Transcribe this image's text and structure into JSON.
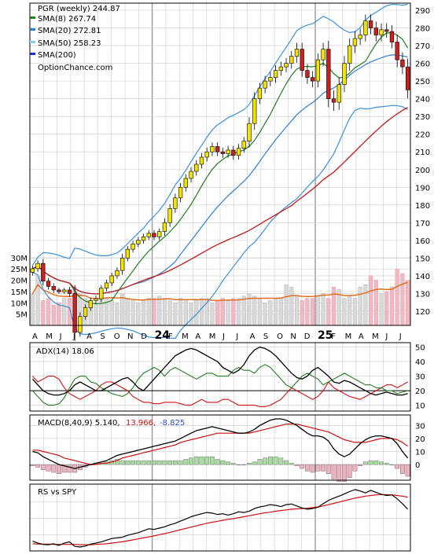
{
  "chart_data": {
    "type": "line",
    "symbol": "PGR",
    "period": "weekly",
    "colors": {
      "grid": "#cccccc",
      "frame": "#000000",
      "sma8": "#1d7f1d",
      "sma20": "#2f7fd0",
      "sma50": "#c01a1a",
      "sma200": "#1a2ad8",
      "bb": "#3a8fdc",
      "bb_squeeze": "#f0e000",
      "candle_up": "#f2e300",
      "candle_down": "#cc1f1f",
      "volume": "#d9d9d9",
      "volume_down": "#f0b9c4",
      "volume_ma": "#e07020",
      "adx": "#000000",
      "plus_di": "#1f7f1f",
      "minus_di": "#d01010",
      "macd": "#000000",
      "signal": "#cc1010",
      "hist_up": "#a8dca0",
      "hist_down": "#f0b0c0",
      "rs": "#000000",
      "rs_ma": "#d01010"
    },
    "legend": {
      "title": "PGR (weekly) 244.87",
      "items": [
        {
          "label": "SMA(8) 267.74",
          "color": "#1d7f1d"
        },
        {
          "label": "SMA(20) 272.81",
          "color": "#2f7fd0"
        },
        {
          "label": "SMA(50) 258.23",
          "color": "#8fc8f0"
        },
        {
          "label": "SMA(200)",
          "color": "#1a2ad8"
        }
      ],
      "source": "OptionChance.com"
    },
    "x_labels": [
      "A",
      "M",
      "J",
      "J",
      "A",
      "S",
      "O",
      "N",
      "D",
      "24",
      "F",
      "M",
      "A",
      "M",
      "J",
      "J",
      "A",
      "S",
      "O",
      "N",
      "D",
      "25",
      "F",
      "M",
      "A",
      "M",
      "J",
      "J"
    ],
    "x_emphasis": [
      "24",
      "25"
    ],
    "price_axis": {
      "ticks": [
        120,
        130,
        140,
        150,
        160,
        170,
        180,
        190,
        200,
        210,
        220,
        230,
        240,
        250,
        260,
        270,
        280,
        290
      ],
      "range": [
        112,
        294
      ]
    },
    "volume_axis": {
      "ticks": [
        "5M",
        "10M",
        "15M",
        "20M",
        "25M",
        "30M"
      ],
      "values": [
        5,
        10,
        15,
        20,
        25,
        30
      ],
      "range": [
        0,
        31
      ]
    },
    "price": {
      "closes": [
        144,
        147,
        137,
        134,
        132,
        131,
        132,
        130,
        108,
        117,
        122,
        126,
        127,
        133,
        136,
        140,
        143,
        150,
        155,
        158,
        160,
        162,
        164,
        162,
        165,
        170,
        178,
        184,
        190,
        195,
        199,
        203,
        207,
        210,
        213,
        210,
        209,
        211,
        208,
        212,
        216,
        226,
        240,
        246,
        250,
        252,
        256,
        258,
        260,
        264,
        268,
        256,
        252,
        250,
        262,
        268,
        240,
        238,
        248,
        260,
        270,
        274,
        276,
        284,
        280,
        276,
        279,
        278,
        272,
        262,
        258,
        245
      ],
      "spread": [
        3,
        3,
        4,
        3,
        3,
        2,
        2,
        3,
        8,
        4,
        3,
        3,
        3,
        3,
        3,
        3,
        3,
        4,
        3,
        3,
        3,
        3,
        3,
        3,
        3,
        4,
        4,
        4,
        4,
        4,
        4,
        4,
        4,
        4,
        4,
        4,
        4,
        4,
        4,
        4,
        4,
        6,
        6,
        5,
        5,
        5,
        5,
        5,
        5,
        5,
        6,
        6,
        6,
        6,
        6,
        6,
        8,
        8,
        7,
        7,
        7,
        7,
        6,
        6,
        6,
        6,
        6,
        6,
        6,
        7,
        7,
        8
      ]
    },
    "volume": {
      "values_m": [
        14,
        22,
        11,
        12,
        9,
        10,
        12,
        12,
        17,
        14,
        12,
        11,
        10,
        12,
        12,
        11,
        10,
        14,
        12,
        11,
        10,
        11,
        12,
        12,
        13,
        12,
        11,
        10,
        12,
        11,
        10,
        11,
        12,
        12,
        10,
        11,
        12,
        11,
        12,
        12,
        13,
        14,
        13,
        12,
        10,
        11,
        12,
        12,
        18,
        17,
        13,
        11,
        12,
        12,
        13,
        14,
        12,
        17,
        16,
        12,
        13,
        12,
        17,
        18,
        22,
        20,
        14,
        15,
        17,
        25,
        23,
        20
      ]
    },
    "adx": {
      "label": "ADX(14) 18.06",
      "ticks": [
        10,
        20,
        30,
        40,
        50
      ],
      "range": [
        6,
        53
      ],
      "adx": [
        28,
        24,
        20,
        18,
        17,
        17,
        18,
        20,
        24,
        26,
        24,
        22,
        20,
        20,
        22,
        24,
        26,
        28,
        29,
        26,
        22,
        20,
        24,
        28,
        32,
        36,
        40,
        44,
        46,
        48,
        49,
        48,
        46,
        44,
        42,
        40,
        36,
        34,
        32,
        34,
        38,
        44,
        48,
        50,
        49,
        47,
        44,
        40,
        36,
        32,
        29,
        28,
        30,
        34,
        36,
        33,
        30,
        26,
        25,
        27,
        26,
        24,
        22,
        20,
        18,
        17,
        18,
        19,
        18,
        17,
        17,
        18
      ],
      "plus_di": [
        20,
        16,
        12,
        10,
        10,
        11,
        15,
        22,
        28,
        30,
        30,
        26,
        25,
        22,
        20,
        18,
        17,
        16,
        18,
        22,
        28,
        32,
        34,
        36,
        34,
        30,
        34,
        36,
        34,
        32,
        30,
        28,
        30,
        32,
        32,
        30,
        30,
        30,
        34,
        36,
        34,
        34,
        32,
        36,
        38,
        36,
        32,
        28,
        24,
        22,
        26,
        30,
        32,
        30,
        28,
        24,
        26,
        28,
        30,
        32,
        30,
        28,
        26,
        24,
        24,
        22,
        22,
        20,
        20,
        18,
        19,
        20
      ],
      "minus_di": [
        30,
        26,
        28,
        30,
        30,
        28,
        22,
        18,
        16,
        14,
        16,
        18,
        20,
        24,
        26,
        26,
        24,
        22,
        20,
        16,
        14,
        12,
        12,
        11,
        11,
        12,
        12,
        12,
        11,
        10,
        10,
        12,
        14,
        12,
        12,
        12,
        14,
        14,
        12,
        10,
        10,
        10,
        10,
        9,
        9,
        10,
        12,
        14,
        18,
        22,
        20,
        18,
        16,
        14,
        16,
        20,
        26,
        22,
        20,
        18,
        16,
        15,
        14,
        16,
        18,
        20,
        22,
        24,
        24,
        22,
        24,
        26
      ]
    },
    "macd": {
      "label_prefix": "MACD(8,40,9) 5.140,",
      "label_signal": "13.966,",
      "label_hist": "-8.825",
      "ticks": [
        0,
        10,
        20,
        30
      ],
      "range": [
        -12,
        38
      ],
      "macd": [
        10,
        9,
        6,
        4,
        2,
        0,
        -1,
        -2,
        -3,
        -2,
        -1,
        0,
        1,
        2,
        3,
        5,
        7,
        8,
        9,
        10,
        11,
        12,
        13,
        14,
        15,
        16,
        17,
        18,
        20,
        22,
        24,
        26,
        27,
        28,
        29,
        28,
        27,
        26,
        25,
        24,
        24,
        25,
        27,
        30,
        32,
        34,
        35,
        35,
        34,
        32,
        30,
        27,
        24,
        22,
        22,
        21,
        18,
        12,
        8,
        6,
        8,
        12,
        16,
        19,
        21,
        22,
        22,
        21,
        20,
        16,
        10,
        5
      ],
      "signal": [
        11,
        11,
        10,
        9,
        8,
        7,
        5,
        4,
        3,
        2,
        1,
        0,
        0,
        1,
        1,
        2,
        3,
        5,
        6,
        7,
        8,
        9,
        10,
        11,
        12,
        13,
        14,
        15,
        17,
        18,
        19,
        20,
        21,
        22,
        23,
        24,
        24,
        24,
        24,
        24,
        24,
        24,
        25,
        26,
        27,
        28,
        29,
        30,
        31,
        31,
        31,
        30,
        29,
        28,
        27,
        26,
        25,
        23,
        21,
        19,
        18,
        17,
        17,
        17,
        18,
        19,
        20,
        20,
        20,
        19,
        17,
        14
      ],
      "hist": [
        -1,
        -2,
        -4,
        -5,
        -6,
        -7,
        -6,
        -6,
        -6,
        -4,
        -2,
        0,
        1,
        1,
        2,
        3,
        4,
        3,
        3,
        3,
        3,
        3,
        3,
        3,
        3,
        3,
        3,
        3,
        3,
        4,
        5,
        6,
        6,
        6,
        6,
        4,
        3,
        2,
        1,
        0,
        0,
        1,
        2,
        4,
        5,
        6,
        6,
        5,
        3,
        1,
        -1,
        -3,
        -5,
        -6,
        -5,
        -5,
        -7,
        -11,
        -13,
        -13,
        -10,
        -5,
        -1,
        2,
        3,
        3,
        2,
        1,
        0,
        -3,
        -7,
        -9
      ]
    },
    "rs": {
      "label": "RS vs SPY",
      "rs": [
        0.3,
        0.24,
        0.2,
        0.19,
        0.22,
        0.17,
        0.24,
        0.28,
        0.14,
        0.12,
        0.15,
        0.21,
        0.24,
        0.28,
        0.33,
        0.38,
        0.4,
        0.42,
        0.48,
        0.52,
        0.56,
        0.62,
        0.68,
        0.66,
        0.7,
        0.74,
        0.8,
        0.85,
        0.92,
        0.98,
        1.05,
        1.1,
        1.14,
        1.18,
        1.16,
        1.12,
        1.14,
        1.1,
        1.14,
        1.2,
        1.18,
        1.22,
        1.3,
        1.35,
        1.38,
        1.42,
        1.4,
        1.36,
        1.42,
        1.44,
        1.38,
        1.32,
        1.28,
        1.3,
        1.34,
        1.45,
        1.55,
        1.62,
        1.68,
        1.75,
        1.82,
        1.88,
        1.84,
        1.78,
        1.86,
        1.8,
        1.74,
        1.7,
        1.72,
        1.6,
        1.45,
        1.28
      ],
      "rs_ma": [
        0.22,
        0.21,
        0.21,
        0.21,
        0.2,
        0.2,
        0.2,
        0.2,
        0.2,
        0.19,
        0.19,
        0.19,
        0.2,
        0.21,
        0.22,
        0.24,
        0.26,
        0.28,
        0.31,
        0.34,
        0.37,
        0.4,
        0.43,
        0.46,
        0.5,
        0.53,
        0.57,
        0.61,
        0.65,
        0.69,
        0.73,
        0.77,
        0.81,
        0.85,
        0.88,
        0.91,
        0.94,
        0.97,
        0.99,
        1.02,
        1.05,
        1.08,
        1.11,
        1.14,
        1.17,
        1.19,
        1.22,
        1.24,
        1.26,
        1.28,
        1.29,
        1.3,
        1.31,
        1.33,
        1.35,
        1.38,
        1.42,
        1.46,
        1.5,
        1.54,
        1.58,
        1.62,
        1.65,
        1.68,
        1.7,
        1.72,
        1.73,
        1.73,
        1.72,
        1.7,
        1.68,
        1.65
      ]
    }
  }
}
